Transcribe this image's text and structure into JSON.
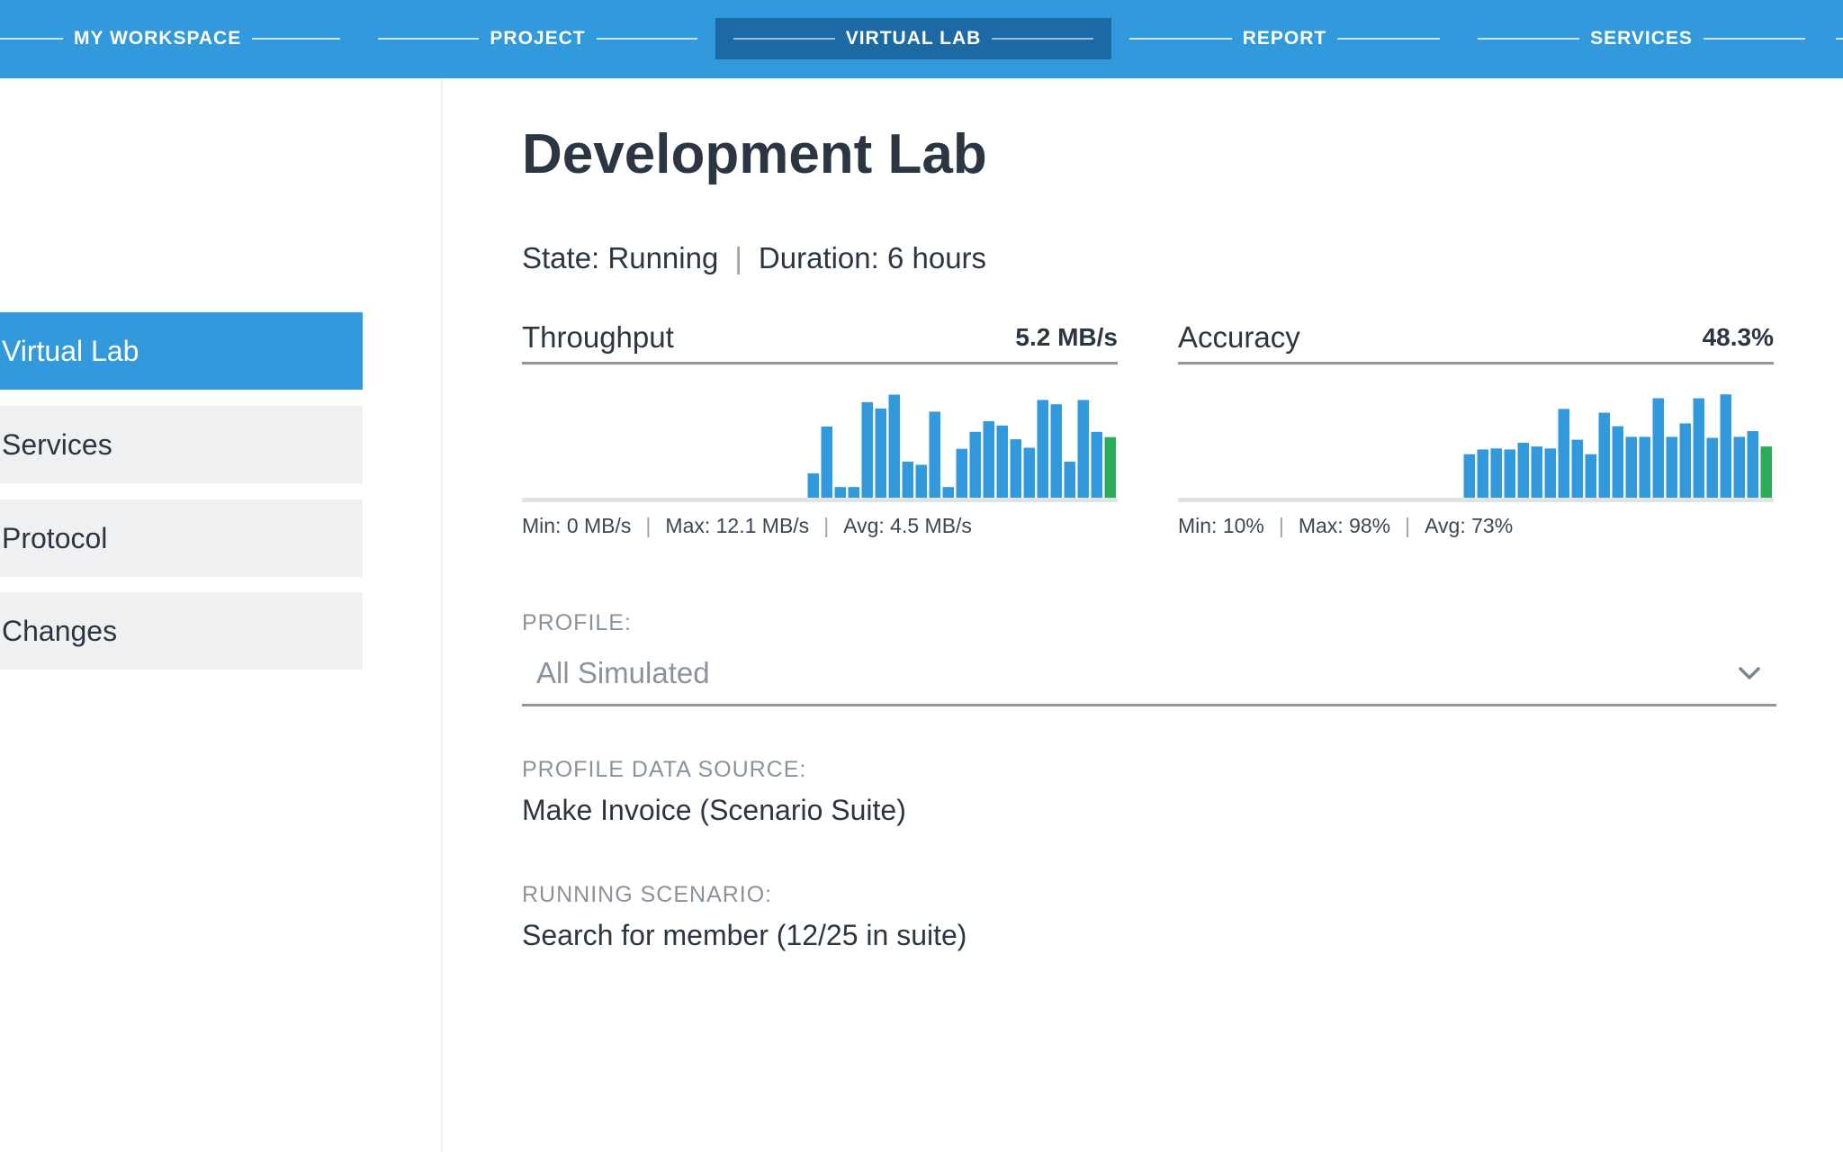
{
  "nav": {
    "items": [
      {
        "label": "MY WORKSPACE"
      },
      {
        "label": "PROJECT"
      },
      {
        "label": "VIRTUAL LAB",
        "active": true
      },
      {
        "label": "REPORT"
      },
      {
        "label": "SERVICES"
      }
    ]
  },
  "sidebar": {
    "items": [
      {
        "label": "Virtual Lab",
        "active": true
      },
      {
        "label": "Services"
      },
      {
        "label": "Protocol"
      },
      {
        "label": "Changes"
      }
    ]
  },
  "main": {
    "title": "Development Lab",
    "state": "State: Running",
    "duration": "Duration: 6 hours",
    "separator": "|"
  },
  "metrics": {
    "throughput": {
      "name": "Throughput",
      "value": "5.2 MB/s",
      "min": "Min: 0 MB/s",
      "max": "Max: 12.1 MB/s",
      "avg": "Avg: 4.5 MB/s",
      "bars": [
        23,
        67,
        10,
        10,
        90,
        84,
        97,
        34,
        31,
        81,
        10,
        46,
        62,
        72,
        68,
        55,
        47,
        92,
        88,
        34,
        92,
        62,
        57
      ],
      "bar_max": 100
    },
    "accuracy": {
      "name": "Accuracy",
      "value": "48.3%",
      "min": "Min: 10%",
      "max": "Max: 98%",
      "avg": "Avg: 73%",
      "bars": [
        45,
        50,
        51,
        50,
        57,
        53,
        51,
        92,
        60,
        45,
        88,
        74,
        63,
        63,
        103,
        63,
        77,
        103,
        62,
        107,
        63,
        69,
        53
      ],
      "bar_max": 110
    },
    "colors": {
      "bar": "#3399dd",
      "current": "#2eab59",
      "baseline": "#dfe3e6"
    }
  },
  "profile": {
    "label": "PROFILE:",
    "value": "All Simulated"
  },
  "profile_source": {
    "label": "PROFILE DATA SOURCE:",
    "value": "Make Invoice (Scenario Suite)"
  },
  "running_scenario": {
    "label": "RUNNING SCENARIO:",
    "value": "Search for member (12/25 in suite)"
  }
}
